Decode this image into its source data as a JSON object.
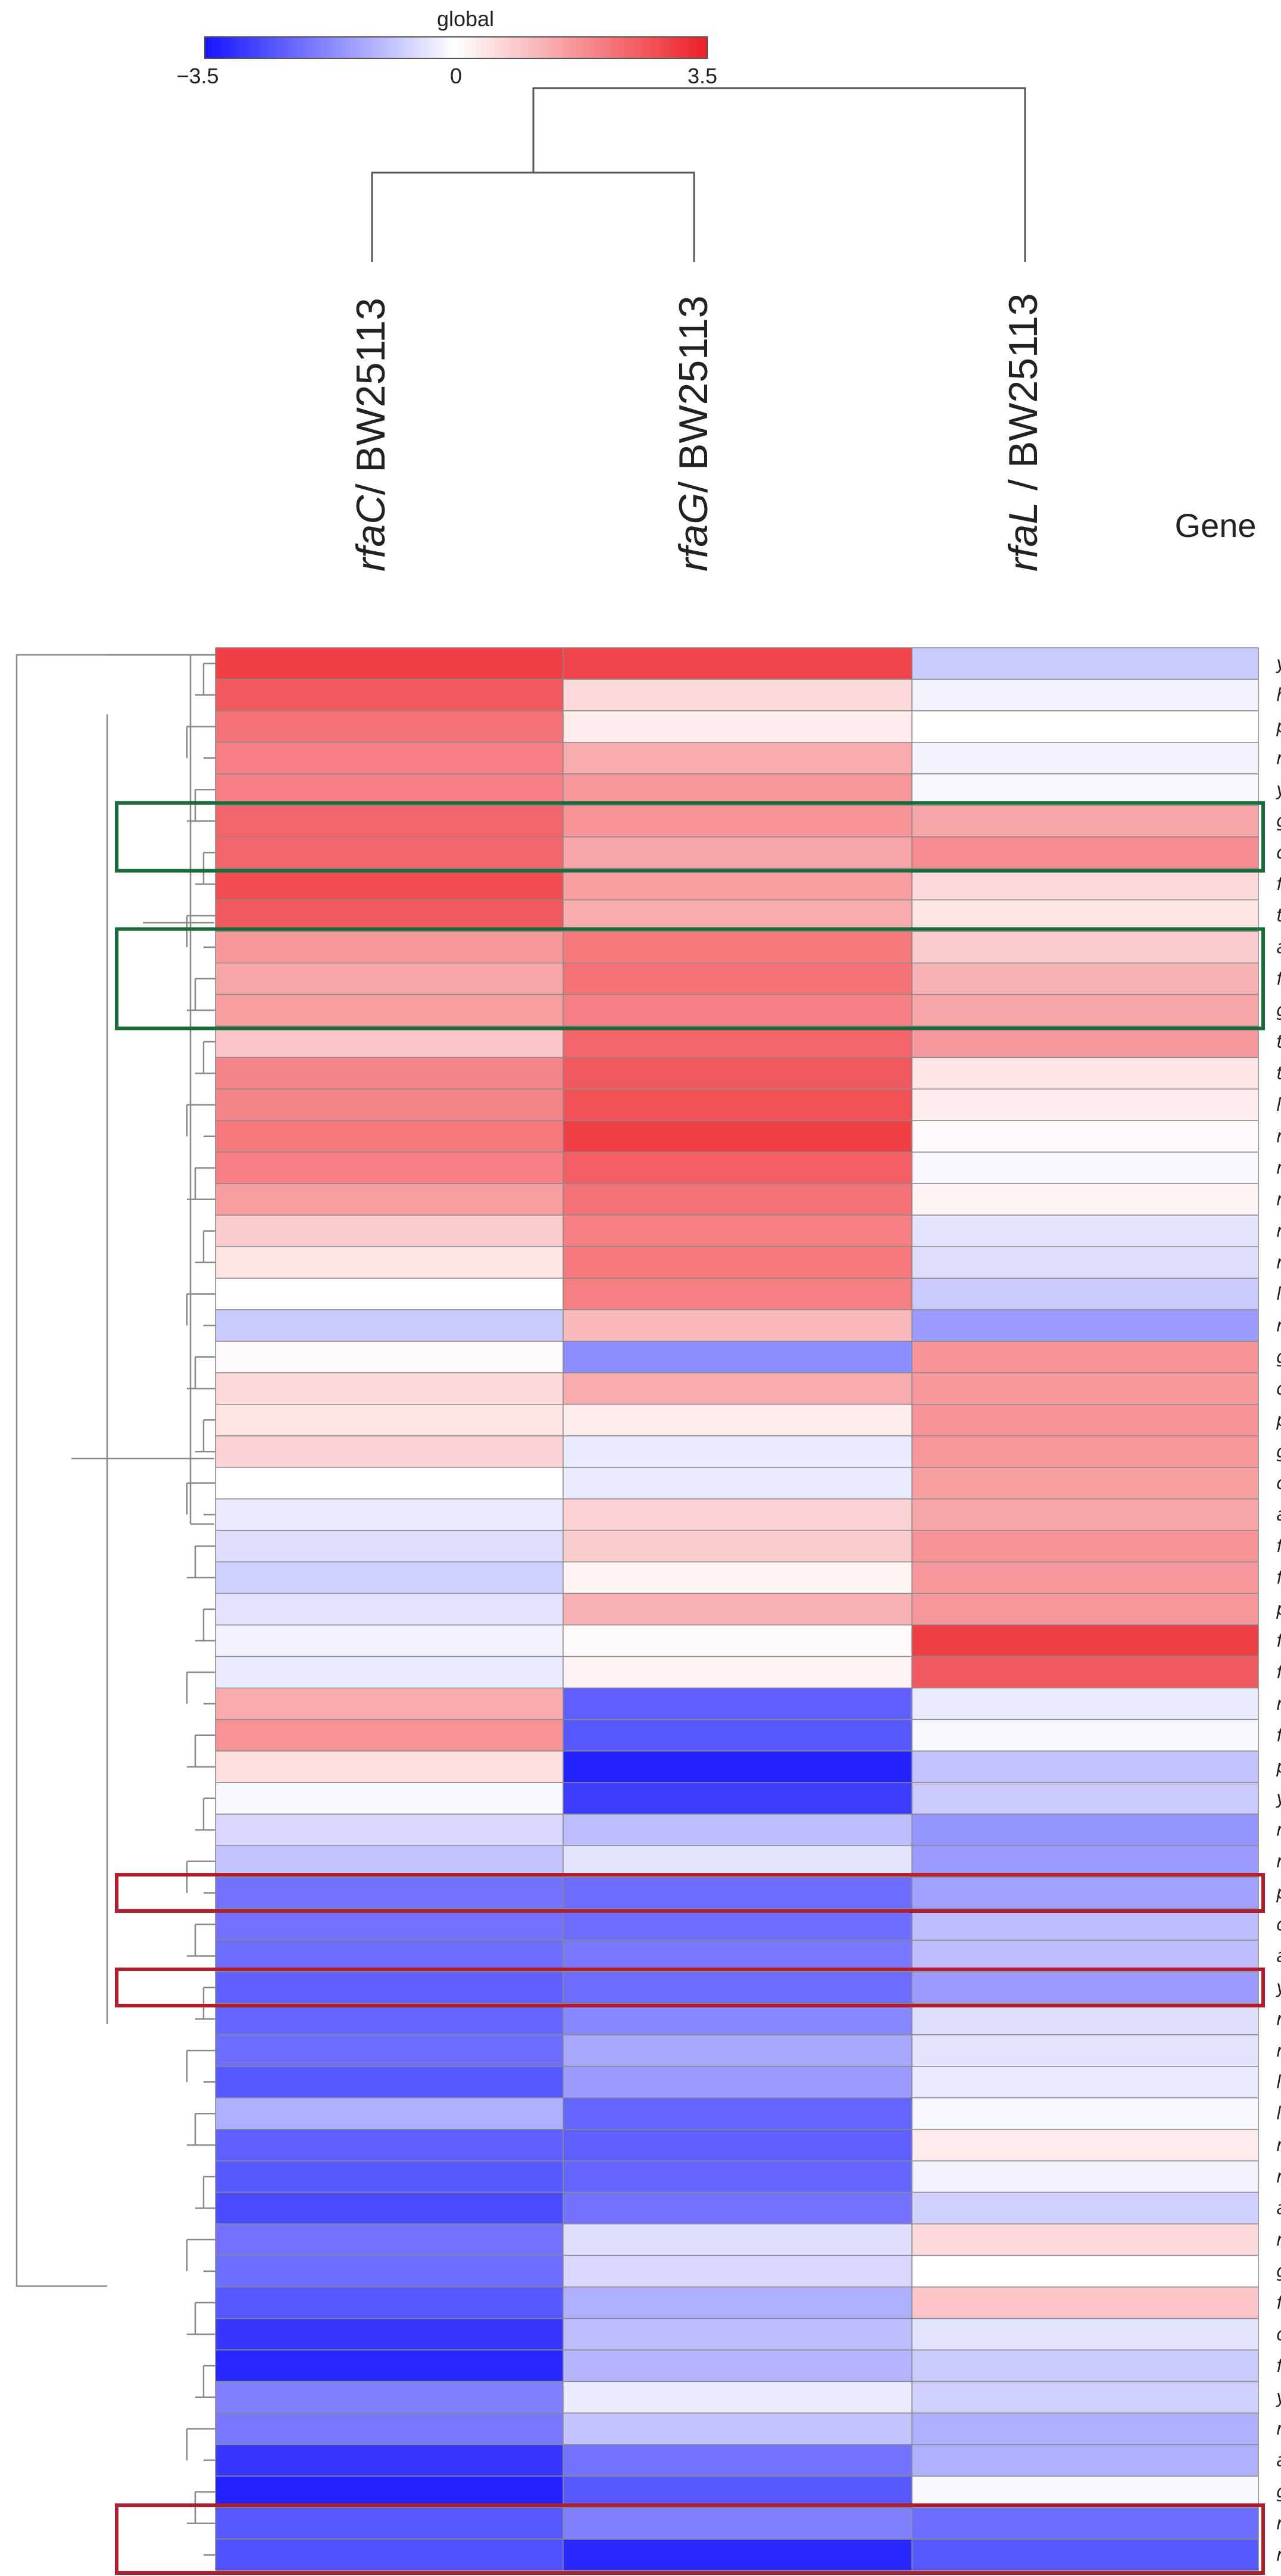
{
  "chart_data": {
    "type": "heatmap",
    "gene_header": "Gene",
    "legend": {
      "title": "global",
      "min_label": "−3.5",
      "mid_label": "0",
      "max_label": "3.5",
      "min": -3.5,
      "max": 3.5,
      "colors": {
        "low": "#1515ff",
        "mid": "#ffffff",
        "high": "#ee1f26"
      }
    },
    "columns": [
      {
        "strain": "rfaC",
        "ref": "/ BW25113"
      },
      {
        "strain": "rfaG",
        "ref": "/ BW25113"
      },
      {
        "strain": "rfaL",
        "ref": " / BW25113"
      }
    ],
    "genes": [
      "ydgI",
      "htpG",
      "pflB",
      "rplC",
      "ydeD",
      "galF",
      "clpX",
      "fepA",
      "tufA",
      "accA",
      "fabB",
      "grpE",
      "tnaA",
      "tig",
      "lepA",
      "rpmA",
      "rpsH",
      "rplK",
      "rplI",
      "rpsF",
      "lpp",
      "rplV",
      "gatY",
      "cra",
      "pfkA",
      "gapA",
      "crp",
      "aceA",
      "feoB",
      "fglL",
      "pykA",
      "fliD",
      "fliC",
      "mlaC",
      "fimH",
      "potD",
      "yajG",
      "rplP",
      "rplM",
      "pspA",
      "cpoB",
      "agp",
      "ydiY",
      "rpsD",
      "rplB",
      "lptD",
      "lpdA",
      "rplT",
      "rpsM",
      "aceF",
      "rpoC",
      "glnA",
      "fecA",
      "ompF",
      "ftnA",
      "yfaZ",
      "rpmC",
      "adhE",
      "groL",
      "rpsT",
      "rpmB"
    ],
    "values": [
      [
        3.0,
        2.9,
        -0.8
      ],
      [
        2.6,
        0.6,
        -0.2
      ],
      [
        2.2,
        0.3,
        0.0
      ],
      [
        2.0,
        1.3,
        -0.2
      ],
      [
        2.0,
        1.6,
        -0.1
      ],
      [
        2.4,
        1.7,
        1.4
      ],
      [
        2.4,
        1.4,
        1.8
      ],
      [
        2.8,
        1.5,
        0.6
      ],
      [
        2.6,
        1.3,
        0.4
      ],
      [
        1.6,
        2.1,
        0.8
      ],
      [
        1.4,
        2.2,
        1.2
      ],
      [
        1.5,
        2.0,
        1.4
      ],
      [
        0.9,
        2.4,
        1.6
      ],
      [
        1.9,
        2.6,
        0.4
      ],
      [
        1.9,
        2.7,
        0.3
      ],
      [
        2.1,
        3.0,
        0.1
      ],
      [
        2.0,
        2.5,
        -0.1
      ],
      [
        1.5,
        2.2,
        0.2
      ],
      [
        0.8,
        2.0,
        -0.4
      ],
      [
        0.4,
        2.1,
        -0.5
      ],
      [
        0.0,
        2.0,
        -0.8
      ],
      [
        -0.8,
        1.1,
        -1.5
      ],
      [
        0.1,
        -1.7,
        1.7
      ],
      [
        0.6,
        1.3,
        1.6
      ],
      [
        0.4,
        0.3,
        1.7
      ],
      [
        0.7,
        -0.3,
        1.6
      ],
      [
        0.0,
        -0.3,
        1.5
      ],
      [
        -0.3,
        0.7,
        1.4
      ],
      [
        -0.5,
        0.8,
        1.7
      ],
      [
        -0.7,
        0.2,
        1.6
      ],
      [
        -0.4,
        1.2,
        1.6
      ],
      [
        -0.2,
        0.1,
        3.0
      ],
      [
        -0.3,
        0.2,
        2.6
      ],
      [
        1.3,
        -2.4,
        -0.3
      ],
      [
        1.7,
        -2.5,
        -0.1
      ],
      [
        0.5,
        -3.3,
        -0.9
      ],
      [
        -0.1,
        -2.9,
        -0.8
      ],
      [
        -0.6,
        -1.0,
        -1.6
      ],
      [
        -0.9,
        -0.4,
        -1.5
      ],
      [
        -2.1,
        -2.2,
        -1.4
      ],
      [
        -2.1,
        -2.2,
        -1.0
      ],
      [
        -2.2,
        -2.0,
        -1.0
      ],
      [
        -2.4,
        -2.2,
        -1.5
      ],
      [
        -2.3,
        -1.8,
        -0.5
      ],
      [
        -2.2,
        -1.3,
        -0.4
      ],
      [
        -2.5,
        -1.5,
        -0.3
      ],
      [
        -1.2,
        -2.3,
        -0.1
      ],
      [
        -2.4,
        -2.4,
        0.3
      ],
      [
        -2.5,
        -2.3,
        -0.2
      ],
      [
        -2.7,
        -2.1,
        -0.7
      ],
      [
        -2.1,
        -0.5,
        0.6
      ],
      [
        -2.2,
        -0.6,
        0.0
      ],
      [
        -2.5,
        -1.2,
        0.9
      ],
      [
        -3.0,
        -1.0,
        -0.4
      ],
      [
        -3.2,
        -1.1,
        -0.8
      ],
      [
        -1.9,
        -0.3,
        -0.7
      ],
      [
        -2.0,
        -0.9,
        -1.2
      ],
      [
        -3.0,
        -2.1,
        -1.2
      ],
      [
        -3.3,
        -2.5,
        -0.1
      ],
      [
        -2.5,
        -1.9,
        -2.2
      ],
      [
        -2.6,
        -3.2,
        -2.5
      ]
    ],
    "highlight_boxes": [
      {
        "rows": [
          "galF",
          "clpX"
        ],
        "color": "#1b6a3a"
      },
      {
        "rows": [
          "accA",
          "grpE"
        ],
        "color": "#1b6a3a"
      },
      {
        "rows": [
          "pspA"
        ],
        "color": "#b01e2e"
      },
      {
        "rows": [
          "ydiY"
        ],
        "color": "#b01e2e"
      },
      {
        "rows": [
          "rpsT",
          "rpmB"
        ],
        "color": "#b01e2e"
      }
    ]
  }
}
